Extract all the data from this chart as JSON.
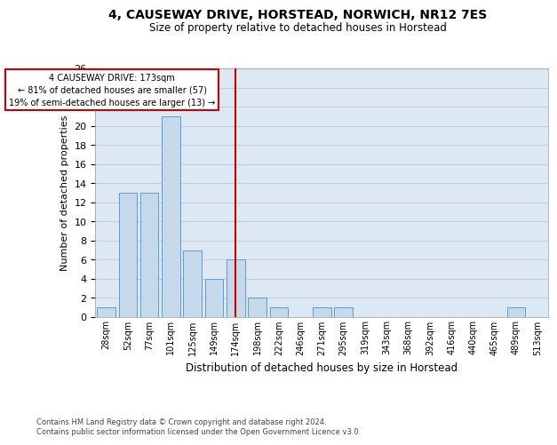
{
  "title1": "4, CAUSEWAY DRIVE, HORSTEAD, NORWICH, NR12 7ES",
  "title2": "Size of property relative to detached houses in Horstead",
  "xlabel": "Distribution of detached houses by size in Horstead",
  "ylabel": "Number of detached properties",
  "bar_labels": [
    "28sqm",
    "52sqm",
    "77sqm",
    "101sqm",
    "125sqm",
    "149sqm",
    "174sqm",
    "198sqm",
    "222sqm",
    "246sqm",
    "271sqm",
    "295sqm",
    "319sqm",
    "343sqm",
    "368sqm",
    "392sqm",
    "416sqm",
    "440sqm",
    "465sqm",
    "489sqm",
    "513sqm"
  ],
  "bar_values": [
    1,
    13,
    13,
    21,
    7,
    4,
    6,
    2,
    1,
    0,
    1,
    1,
    0,
    0,
    0,
    0,
    0,
    0,
    0,
    1,
    0
  ],
  "bar_color": "#c6d9ea",
  "bar_edgecolor": "#5b9bd5",
  "vline_x": 6,
  "vline_color": "#cc0000",
  "annotation_title": "4 CAUSEWAY DRIVE: 173sqm",
  "annotation_line1": "← 81% of detached houses are smaller (57)",
  "annotation_line2": "19% of semi-detached houses are larger (13) →",
  "annotation_box_color": "#cc0000",
  "ylim": [
    0,
    26
  ],
  "yticks": [
    0,
    2,
    4,
    6,
    8,
    10,
    12,
    14,
    16,
    18,
    20,
    22,
    24,
    26
  ],
  "grid_color": "#cccccc",
  "bg_color": "#dce9f5",
  "footer1": "Contains HM Land Registry data © Crown copyright and database right 2024.",
  "footer2": "Contains public sector information licensed under the Open Government Licence v3.0."
}
